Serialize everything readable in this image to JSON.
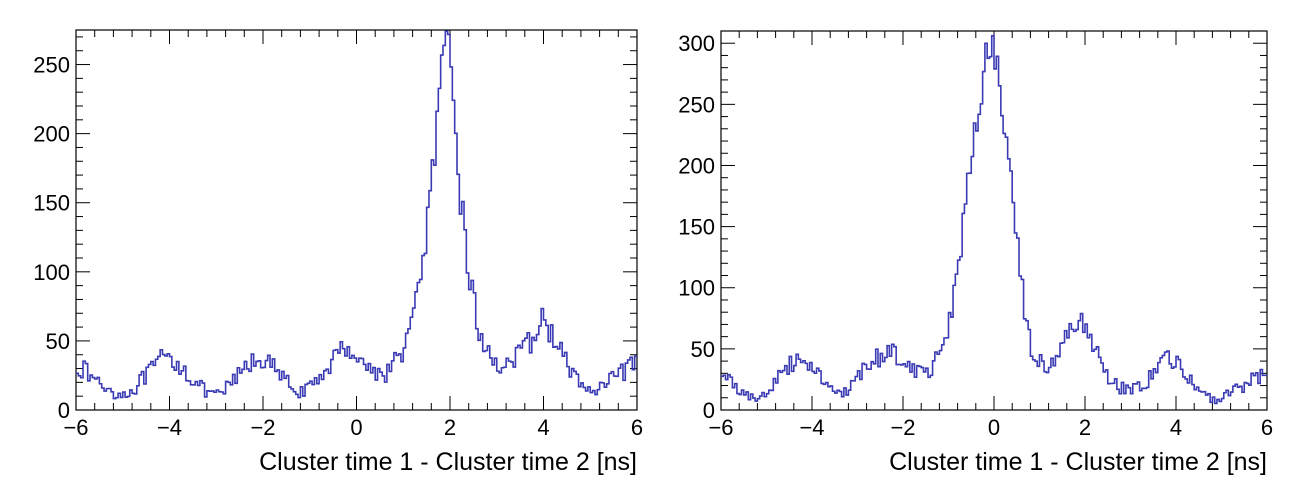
{
  "chart_data": [
    {
      "type": "histogram",
      "title": "",
      "xlabel": "Cluster time 1 - Cluster time 2 [ns]",
      "ylabel": "",
      "xlim": [
        -6,
        6
      ],
      "ylim": [
        0,
        275
      ],
      "x_ticks": [
        -6,
        -4,
        -2,
        0,
        2,
        4,
        6
      ],
      "x_tick_labels": [
        "−6",
        "−4",
        "−2",
        "0",
        "2",
        "4",
        "6"
      ],
      "y_ticks": [
        0,
        50,
        100,
        150,
        200,
        250
      ],
      "y_tick_labels": [
        "0",
        "50",
        "100",
        "150",
        "200",
        "250"
      ],
      "grid": false,
      "legend": "none",
      "line_color": "#3a3ab4",
      "x": [
        -6.0,
        -5.8,
        -5.6,
        -5.4,
        -5.2,
        -5.0,
        -4.8,
        -4.6,
        -4.4,
        -4.2,
        -4.0,
        -3.8,
        -3.6,
        -3.4,
        -3.2,
        -3.0,
        -2.8,
        -2.6,
        -2.4,
        -2.2,
        -2.0,
        -1.8,
        -1.6,
        -1.4,
        -1.2,
        -1.0,
        -0.8,
        -0.6,
        -0.4,
        -0.2,
        0.0,
        0.2,
        0.4,
        0.6,
        0.8,
        1.0,
        1.2,
        1.4,
        1.6,
        1.8,
        1.9,
        2.0,
        2.1,
        2.2,
        2.4,
        2.6,
        2.8,
        3.0,
        3.2,
        3.4,
        3.6,
        3.8,
        4.0,
        4.2,
        4.4,
        4.6,
        4.8,
        5.0,
        5.2,
        5.4,
        5.6,
        5.8,
        6.0
      ],
      "y": [
        33,
        28,
        22,
        17,
        13,
        11,
        14,
        21,
        28,
        36,
        37,
        33,
        26,
        19,
        12,
        10,
        15,
        22,
        30,
        35,
        38,
        31,
        24,
        17,
        13,
        15,
        22,
        33,
        40,
        47,
        40,
        32,
        27,
        26,
        33,
        45,
        62,
        105,
        160,
        230,
        260,
        250,
        215,
        165,
        100,
        60,
        40,
        34,
        33,
        37,
        43,
        55,
        65,
        55,
        40,
        27,
        20,
        12,
        15,
        20,
        25,
        30,
        33
      ]
    },
    {
      "type": "histogram",
      "title": "",
      "xlabel": "Cluster time 1 - Cluster time 2 [ns]",
      "ylabel": "",
      "xlim": [
        -6,
        6
      ],
      "ylim": [
        0,
        310
      ],
      "x_ticks": [
        -6,
        -4,
        -2,
        0,
        2,
        4,
        6
      ],
      "x_tick_labels": [
        "−6",
        "−4",
        "−2",
        "0",
        "2",
        "4",
        "6"
      ],
      "y_ticks": [
        0,
        50,
        100,
        150,
        200,
        250,
        300
      ],
      "y_tick_labels": [
        "0",
        "50",
        "100",
        "150",
        "200",
        "250",
        "300"
      ],
      "grid": false,
      "legend": "none",
      "line_color": "#3a3ab4",
      "x": [
        -6.0,
        -5.8,
        -5.6,
        -5.4,
        -5.2,
        -5.0,
        -4.8,
        -4.6,
        -4.4,
        -4.2,
        -4.0,
        -3.8,
        -3.6,
        -3.4,
        -3.2,
        -3.0,
        -2.8,
        -2.6,
        -2.4,
        -2.2,
        -2.0,
        -1.8,
        -1.6,
        -1.4,
        -1.2,
        -1.0,
        -0.8,
        -0.6,
        -0.4,
        -0.2,
        -0.1,
        0.0,
        0.1,
        0.2,
        0.4,
        0.6,
        0.8,
        1.0,
        1.2,
        1.4,
        1.6,
        1.8,
        2.0,
        2.2,
        2.4,
        2.6,
        2.8,
        3.0,
        3.2,
        3.4,
        3.6,
        3.8,
        4.0,
        4.2,
        4.4,
        4.6,
        4.8,
        5.0,
        5.2,
        5.4,
        5.6,
        5.8,
        6.0
      ],
      "y": [
        30,
        24,
        17,
        12,
        10,
        14,
        22,
        32,
        40,
        44,
        37,
        28,
        18,
        12,
        15,
        25,
        35,
        42,
        46,
        47,
        43,
        36,
        30,
        33,
        46,
        70,
        115,
        175,
        235,
        275,
        290,
        292,
        280,
        245,
        170,
        100,
        55,
        38,
        35,
        45,
        58,
        68,
        70,
        55,
        35,
        22,
        18,
        17,
        18,
        25,
        36,
        42,
        40,
        30,
        18,
        12,
        8,
        10,
        13,
        18,
        24,
        28,
        30
      ]
    }
  ]
}
